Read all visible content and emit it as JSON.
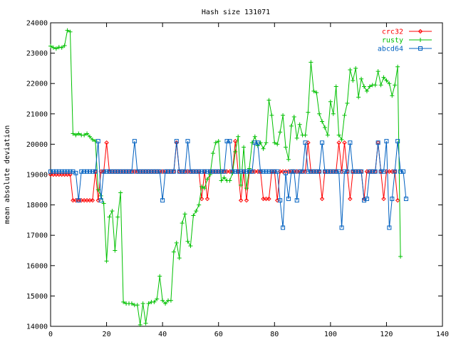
{
  "chart_data": {
    "type": "line",
    "title": "Hash size 131071",
    "xlabel": "",
    "ylabel": "mean absolute deviation",
    "xlim": [
      0,
      140
    ],
    "ylim": [
      14000,
      24000
    ],
    "xticks": [
      0,
      20,
      40,
      60,
      80,
      100,
      120,
      140
    ],
    "yticks": [
      14000,
      15000,
      16000,
      17000,
      18000,
      19000,
      20000,
      21000,
      22000,
      23000,
      24000
    ],
    "grid": false,
    "legend": "top-right",
    "series": [
      {
        "name": "crc32",
        "color": "#ff0000",
        "marker": "diamond",
        "x_start": 0,
        "values": [
          19000,
          19000,
          19000,
          19000,
          19000,
          19000,
          19000,
          19000,
          18150,
          18150,
          18150,
          18150,
          18150,
          18150,
          18150,
          18150,
          19100,
          18150,
          19100,
          19100,
          20050,
          19100,
          19100,
          19100,
          19100,
          19100,
          19100,
          19100,
          19100,
          19100,
          19100,
          19100,
          19100,
          19100,
          19100,
          19100,
          19100,
          19100,
          19100,
          19100,
          19100,
          19100,
          19100,
          19100,
          19100,
          20050,
          19100,
          19100,
          19100,
          19100,
          19100,
          19100,
          19100,
          19100,
          18200,
          19100,
          18200,
          19100,
          19100,
          19100,
          19100,
          19100,
          19100,
          19100,
          19100,
          19100,
          20100,
          19100,
          18150,
          19100,
          18150,
          19100,
          19100,
          19100,
          19100,
          19100,
          18200,
          18200,
          18200,
          19100,
          19100,
          18150,
          19100,
          19100,
          19100,
          19100,
          19100,
          19100,
          19100,
          19100,
          19100,
          19100,
          20050,
          19100,
          19100,
          19100,
          19100,
          18200,
          19100,
          19100,
          19100,
          19100,
          19100,
          20050,
          19100,
          20050,
          19100,
          18200,
          19100,
          19100,
          19100,
          19100,
          18200,
          19100,
          19100,
          19100,
          19100,
          20050,
          19100,
          18200,
          19100,
          19100,
          19100,
          19100,
          18150
        ]
      },
      {
        "name": "rusty",
        "color": "#00c000",
        "marker": "plus",
        "x_start": 0,
        "values": [
          23230,
          23180,
          23150,
          23200,
          23180,
          23250,
          23750,
          23700,
          20350,
          20300,
          20350,
          20300,
          20300,
          20350,
          20250,
          20150,
          20100,
          18500,
          18300,
          18050,
          16150,
          17600,
          17800,
          16500,
          17600,
          18400,
          14800,
          14750,
          14750,
          14750,
          14700,
          14700,
          14050,
          14750,
          14100,
          14750,
          14800,
          14800,
          14900,
          15650,
          14850,
          14750,
          14850,
          14850,
          16450,
          16750,
          16250,
          17400,
          17700,
          16800,
          16650,
          17650,
          17800,
          18000,
          18600,
          18550,
          18850,
          19000,
          19700,
          20050,
          20100,
          18800,
          18900,
          18800,
          18800,
          19050,
          19750,
          20250,
          18650,
          19900,
          18550,
          19200,
          20050,
          20250,
          19950,
          20050,
          19850,
          20050,
          21450,
          20950,
          20050,
          20000,
          20400,
          20950,
          19900,
          19500,
          20600,
          20900,
          20200,
          20650,
          20300,
          20300,
          21050,
          22700,
          21750,
          21700,
          21000,
          20750,
          20550,
          20300,
          21400,
          21000,
          21900,
          20300,
          20150,
          20950,
          21350,
          22450,
          22100,
          22500,
          21550,
          22150,
          21900,
          21750,
          21900,
          21950,
          21950,
          22400,
          21950,
          22200,
          22100,
          22000,
          21600,
          21950,
          22550,
          16300
        ]
      },
      {
        "name": "abcd64",
        "color": "#0060c0",
        "marker": "square",
        "x_start": 0,
        "values": [
          19100,
          19100,
          19100,
          19100,
          19100,
          19100,
          19100,
          19100,
          19100,
          19050,
          18150,
          19100,
          19100,
          19100,
          19100,
          19100,
          19100,
          20100,
          18150,
          19100,
          19100,
          19100,
          19100,
          19100,
          19100,
          19100,
          19100,
          19100,
          19100,
          19100,
          20100,
          19100,
          19100,
          19100,
          19100,
          19100,
          19100,
          19100,
          19100,
          19100,
          18150,
          19100,
          19100,
          19100,
          19100,
          20100,
          19100,
          19100,
          19100,
          20100,
          19100,
          19100,
          19100,
          19100,
          19100,
          19100,
          19100,
          19100,
          19100,
          19100,
          19100,
          19100,
          19100,
          20100,
          20100,
          19100,
          19100,
          19100,
          19100,
          19100,
          19100,
          19100,
          19100,
          20050,
          20050,
          19100,
          19100,
          19100,
          19100,
          19100,
          19100,
          19100,
          18150,
          17250,
          19050,
          18200,
          19100,
          19100,
          18150,
          19100,
          19100,
          20050,
          19100,
          19100,
          19100,
          19100,
          19100,
          20050,
          19100,
          19100,
          19100,
          19100,
          19100,
          19100,
          17250,
          19100,
          19100,
          20050,
          19100,
          19100,
          19100,
          19100,
          18150,
          18200,
          19100,
          19100,
          19100,
          20050,
          19100,
          19100,
          20100,
          17250,
          18200,
          19100,
          20100,
          19100,
          19100,
          18200
        ]
      }
    ]
  }
}
